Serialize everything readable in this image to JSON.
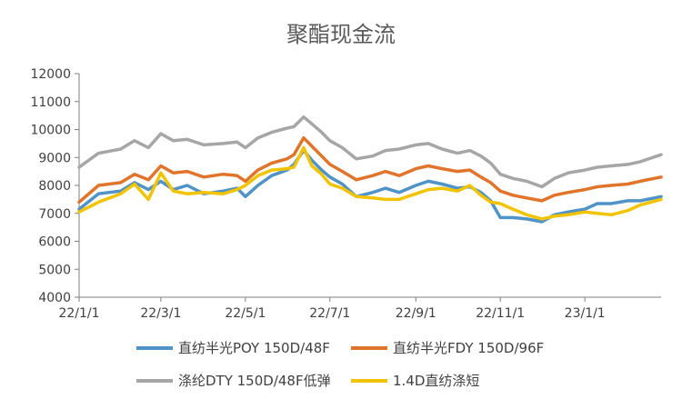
{
  "chart_data": {
    "type": "line",
    "title": "聚酯现金流",
    "xlabel": "",
    "ylabel": "",
    "ylim": [
      4000,
      12000
    ],
    "yticks": [
      4000,
      5000,
      6000,
      7000,
      8000,
      9000,
      10000,
      11000,
      12000
    ],
    "xlim": [
      "2022-01-01",
      "2023-02-25"
    ],
    "xticks": [
      {
        "date": "2022-01-01",
        "label": "22/1/1"
      },
      {
        "date": "2022-03-01",
        "label": "22/3/1"
      },
      {
        "date": "2022-05-01",
        "label": "22/5/1"
      },
      {
        "date": "2022-07-01",
        "label": "22/7/1"
      },
      {
        "date": "2022-09-01",
        "label": "22/9/1"
      },
      {
        "date": "2022-11-01",
        "label": "22/11/1"
      },
      {
        "date": "2023-01-01",
        "label": "23/1/1"
      }
    ],
    "grid": false,
    "legend_position": "bottom",
    "series": [
      {
        "name": "直纺半光POY 150D/48F",
        "color": "#4F93C8",
        "points": [
          [
            "2022-01-01",
            7150
          ],
          [
            "2022-01-15",
            7700
          ],
          [
            "2022-01-31",
            7800
          ],
          [
            "2022-02-10",
            8100
          ],
          [
            "2022-02-20",
            7850
          ],
          [
            "2022-03-01",
            8150
          ],
          [
            "2022-03-10",
            7850
          ],
          [
            "2022-03-20",
            8000
          ],
          [
            "2022-04-01",
            7700
          ],
          [
            "2022-04-15",
            7800
          ],
          [
            "2022-04-25",
            7900
          ],
          [
            "2022-05-01",
            7600
          ],
          [
            "2022-05-10",
            8000
          ],
          [
            "2022-05-20",
            8350
          ],
          [
            "2022-05-31",
            8550
          ],
          [
            "2022-06-05",
            8750
          ],
          [
            "2022-06-12",
            9250
          ],
          [
            "2022-06-18",
            8900
          ],
          [
            "2022-06-25",
            8550
          ],
          [
            "2022-07-01",
            8300
          ],
          [
            "2022-07-10",
            8050
          ],
          [
            "2022-07-20",
            7600
          ],
          [
            "2022-08-01",
            7750
          ],
          [
            "2022-08-10",
            7900
          ],
          [
            "2022-08-20",
            7750
          ],
          [
            "2022-09-01",
            8000
          ],
          [
            "2022-09-10",
            8150
          ],
          [
            "2022-09-20",
            8050
          ],
          [
            "2022-10-01",
            7900
          ],
          [
            "2022-10-10",
            7950
          ],
          [
            "2022-10-18",
            7750
          ],
          [
            "2022-10-25",
            7450
          ],
          [
            "2022-11-01",
            6850
          ],
          [
            "2022-11-10",
            6850
          ],
          [
            "2022-11-20",
            6800
          ],
          [
            "2022-12-01",
            6700
          ],
          [
            "2022-12-10",
            6950
          ],
          [
            "2022-12-20",
            7050
          ],
          [
            "2023-01-01",
            7150
          ],
          [
            "2023-01-10",
            7350
          ],
          [
            "2023-01-20",
            7350
          ],
          [
            "2023-02-01",
            7450
          ],
          [
            "2023-02-10",
            7450
          ],
          [
            "2023-02-25",
            7600
          ]
        ]
      },
      {
        "name": "直纺半光FDY 150D/96F",
        "color": "#E0742B",
        "points": [
          [
            "2022-01-01",
            7400
          ],
          [
            "2022-01-15",
            8000
          ],
          [
            "2022-01-31",
            8100
          ],
          [
            "2022-02-10",
            8400
          ],
          [
            "2022-02-20",
            8200
          ],
          [
            "2022-03-01",
            8700
          ],
          [
            "2022-03-10",
            8450
          ],
          [
            "2022-03-20",
            8500
          ],
          [
            "2022-04-01",
            8300
          ],
          [
            "2022-04-15",
            8400
          ],
          [
            "2022-04-25",
            8350
          ],
          [
            "2022-05-01",
            8150
          ],
          [
            "2022-05-10",
            8550
          ],
          [
            "2022-05-20",
            8800
          ],
          [
            "2022-05-31",
            8950
          ],
          [
            "2022-06-05",
            9100
          ],
          [
            "2022-06-12",
            9700
          ],
          [
            "2022-06-18",
            9400
          ],
          [
            "2022-06-25",
            9050
          ],
          [
            "2022-07-01",
            8750
          ],
          [
            "2022-07-10",
            8500
          ],
          [
            "2022-07-20",
            8200
          ],
          [
            "2022-08-01",
            8350
          ],
          [
            "2022-08-10",
            8500
          ],
          [
            "2022-08-20",
            8350
          ],
          [
            "2022-09-01",
            8600
          ],
          [
            "2022-09-10",
            8700
          ],
          [
            "2022-09-20",
            8600
          ],
          [
            "2022-10-01",
            8500
          ],
          [
            "2022-10-10",
            8550
          ],
          [
            "2022-10-18",
            8300
          ],
          [
            "2022-10-25",
            8100
          ],
          [
            "2022-11-01",
            7800
          ],
          [
            "2022-11-10",
            7650
          ],
          [
            "2022-11-20",
            7550
          ],
          [
            "2022-12-01",
            7450
          ],
          [
            "2022-12-10",
            7650
          ],
          [
            "2022-12-20",
            7750
          ],
          [
            "2023-01-01",
            7850
          ],
          [
            "2023-01-10",
            7950
          ],
          [
            "2023-01-20",
            8000
          ],
          [
            "2023-02-01",
            8050
          ],
          [
            "2023-02-10",
            8150
          ],
          [
            "2023-02-25",
            8300
          ]
        ]
      },
      {
        "name": "涤纶DTY 150D/48F低弹",
        "color": "#A6A6A6",
        "points": [
          [
            "2022-01-01",
            8650
          ],
          [
            "2022-01-15",
            9150
          ],
          [
            "2022-01-31",
            9300
          ],
          [
            "2022-02-10",
            9600
          ],
          [
            "2022-02-20",
            9350
          ],
          [
            "2022-03-01",
            9850
          ],
          [
            "2022-03-10",
            9600
          ],
          [
            "2022-03-20",
            9650
          ],
          [
            "2022-04-01",
            9450
          ],
          [
            "2022-04-15",
            9500
          ],
          [
            "2022-04-25",
            9550
          ],
          [
            "2022-05-01",
            9350
          ],
          [
            "2022-05-10",
            9700
          ],
          [
            "2022-05-20",
            9900
          ],
          [
            "2022-05-31",
            10050
          ],
          [
            "2022-06-05",
            10100
          ],
          [
            "2022-06-12",
            10450
          ],
          [
            "2022-06-18",
            10200
          ],
          [
            "2022-06-25",
            9900
          ],
          [
            "2022-07-01",
            9600
          ],
          [
            "2022-07-10",
            9350
          ],
          [
            "2022-07-20",
            8950
          ],
          [
            "2022-08-01",
            9050
          ],
          [
            "2022-08-10",
            9250
          ],
          [
            "2022-08-20",
            9300
          ],
          [
            "2022-09-01",
            9450
          ],
          [
            "2022-09-10",
            9500
          ],
          [
            "2022-09-20",
            9300
          ],
          [
            "2022-10-01",
            9150
          ],
          [
            "2022-10-10",
            9250
          ],
          [
            "2022-10-18",
            9050
          ],
          [
            "2022-10-25",
            8800
          ],
          [
            "2022-11-01",
            8400
          ],
          [
            "2022-11-10",
            8250
          ],
          [
            "2022-11-20",
            8150
          ],
          [
            "2022-12-01",
            7950
          ],
          [
            "2022-12-10",
            8250
          ],
          [
            "2022-12-20",
            8450
          ],
          [
            "2023-01-01",
            8550
          ],
          [
            "2023-01-10",
            8650
          ],
          [
            "2023-01-20",
            8700
          ],
          [
            "2023-02-01",
            8750
          ],
          [
            "2023-02-10",
            8850
          ],
          [
            "2023-02-25",
            9100
          ]
        ]
      },
      {
        "name": "1.4D直纺涤短",
        "color": "#F2C300",
        "points": [
          [
            "2022-01-01",
            7050
          ],
          [
            "2022-01-15",
            7400
          ],
          [
            "2022-01-31",
            7700
          ],
          [
            "2022-02-10",
            8050
          ],
          [
            "2022-02-20",
            7500
          ],
          [
            "2022-03-01",
            8450
          ],
          [
            "2022-03-10",
            7800
          ],
          [
            "2022-03-20",
            7700
          ],
          [
            "2022-04-01",
            7750
          ],
          [
            "2022-04-15",
            7700
          ],
          [
            "2022-04-25",
            7850
          ],
          [
            "2022-05-01",
            8000
          ],
          [
            "2022-05-10",
            8350
          ],
          [
            "2022-05-20",
            8550
          ],
          [
            "2022-05-31",
            8600
          ],
          [
            "2022-06-05",
            8650
          ],
          [
            "2022-06-12",
            9350
          ],
          [
            "2022-06-18",
            8700
          ],
          [
            "2022-06-25",
            8400
          ],
          [
            "2022-07-01",
            8050
          ],
          [
            "2022-07-10",
            7900
          ],
          [
            "2022-07-20",
            7600
          ],
          [
            "2022-08-01",
            7550
          ],
          [
            "2022-08-10",
            7500
          ],
          [
            "2022-08-20",
            7500
          ],
          [
            "2022-09-01",
            7700
          ],
          [
            "2022-09-10",
            7850
          ],
          [
            "2022-09-20",
            7900
          ],
          [
            "2022-10-01",
            7800
          ],
          [
            "2022-10-10",
            8000
          ],
          [
            "2022-10-18",
            7650
          ],
          [
            "2022-10-25",
            7400
          ],
          [
            "2022-11-01",
            7350
          ],
          [
            "2022-11-10",
            7150
          ],
          [
            "2022-11-20",
            6950
          ],
          [
            "2022-12-01",
            6800
          ],
          [
            "2022-12-10",
            6900
          ],
          [
            "2022-12-20",
            6950
          ],
          [
            "2023-01-01",
            7050
          ],
          [
            "2023-01-10",
            7000
          ],
          [
            "2023-01-20",
            6950
          ],
          [
            "2023-02-01",
            7100
          ],
          [
            "2023-02-10",
            7300
          ],
          [
            "2023-02-25",
            7500
          ]
        ]
      }
    ]
  }
}
